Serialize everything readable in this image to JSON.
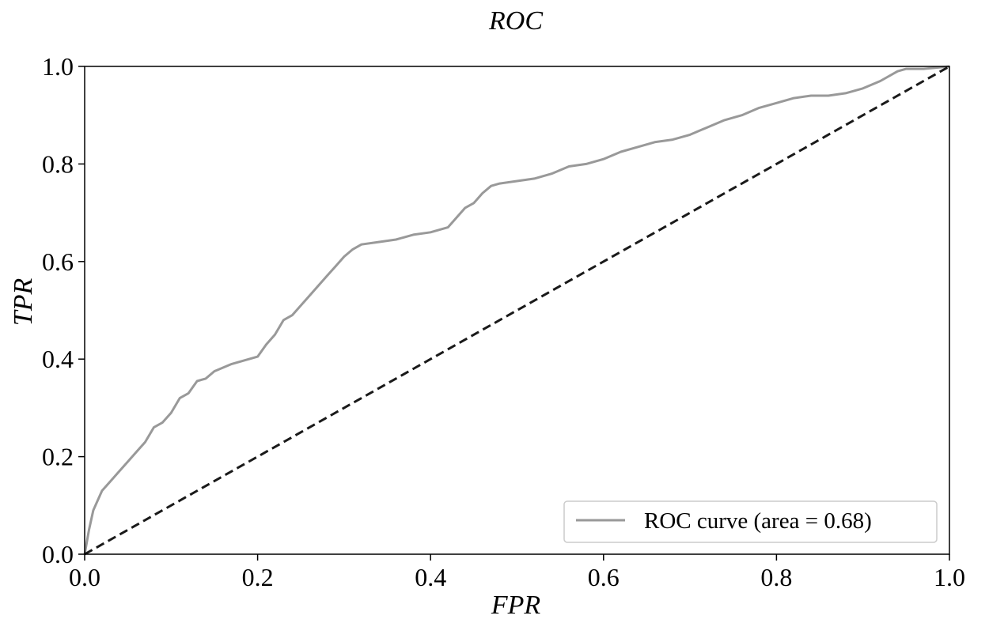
{
  "chart_data": {
    "type": "line",
    "title": "ROC",
    "xlabel": "FPR",
    "ylabel": "TPR",
    "xlim": [
      0.0,
      1.0
    ],
    "ylim": [
      0.0,
      1.0
    ],
    "xticks": [
      "0.0",
      "0.2",
      "0.4",
      "0.6",
      "0.8",
      "1.0"
    ],
    "yticks": [
      "0.0",
      "0.2",
      "0.4",
      "0.6",
      "0.8",
      "1.0"
    ],
    "grid": false,
    "legend_position": "lower-right",
    "series": [
      {
        "name": "ROC curve (area = 0.68)",
        "color": "#999999",
        "style": "solid",
        "x": [
          0.0,
          0.005,
          0.01,
          0.015,
          0.02,
          0.03,
          0.04,
          0.05,
          0.06,
          0.07,
          0.08,
          0.09,
          0.1,
          0.11,
          0.12,
          0.13,
          0.14,
          0.15,
          0.17,
          0.19,
          0.2,
          0.21,
          0.22,
          0.23,
          0.24,
          0.26,
          0.27,
          0.28,
          0.29,
          0.3,
          0.31,
          0.32,
          0.34,
          0.36,
          0.38,
          0.4,
          0.42,
          0.43,
          0.44,
          0.45,
          0.46,
          0.47,
          0.48,
          0.5,
          0.52,
          0.54,
          0.56,
          0.58,
          0.6,
          0.62,
          0.64,
          0.66,
          0.68,
          0.7,
          0.72,
          0.74,
          0.76,
          0.78,
          0.8,
          0.82,
          0.84,
          0.86,
          0.88,
          0.9,
          0.92,
          0.94,
          0.95,
          0.97,
          1.0
        ],
        "y": [
          0.0,
          0.05,
          0.09,
          0.11,
          0.13,
          0.15,
          0.17,
          0.19,
          0.21,
          0.23,
          0.26,
          0.27,
          0.29,
          0.32,
          0.33,
          0.355,
          0.36,
          0.375,
          0.39,
          0.4,
          0.405,
          0.43,
          0.45,
          0.48,
          0.49,
          0.53,
          0.55,
          0.57,
          0.59,
          0.61,
          0.625,
          0.635,
          0.64,
          0.645,
          0.655,
          0.66,
          0.67,
          0.69,
          0.71,
          0.72,
          0.74,
          0.755,
          0.76,
          0.765,
          0.77,
          0.78,
          0.795,
          0.8,
          0.81,
          0.825,
          0.835,
          0.845,
          0.85,
          0.86,
          0.875,
          0.89,
          0.9,
          0.915,
          0.925,
          0.935,
          0.94,
          0.94,
          0.945,
          0.955,
          0.97,
          0.99,
          0.995,
          0.995,
          1.0
        ]
      },
      {
        "color": "#1a1a1a",
        "style": "dashed",
        "x": [
          0.0,
          1.0
        ],
        "y": [
          0.0,
          1.0
        ]
      }
    ]
  }
}
